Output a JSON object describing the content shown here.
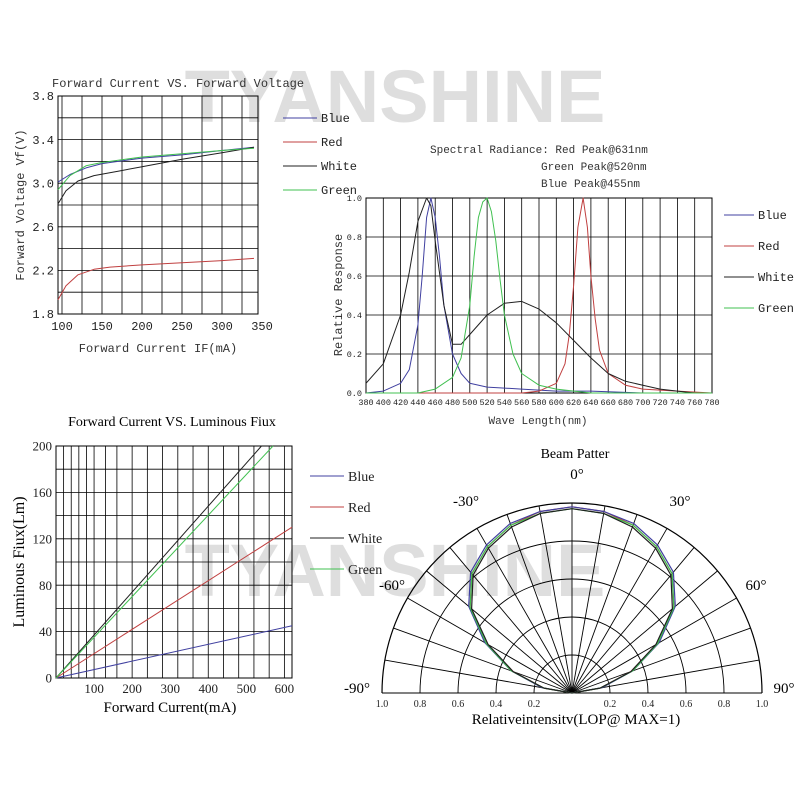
{
  "watermark": {
    "text": "TYANSHINE",
    "color": "#cccccc"
  },
  "colors": {
    "Blue": "#4040a0",
    "Red": "#c04040",
    "White": "#202020",
    "Green": "#40c050"
  },
  "chart_data": [
    {
      "id": "vf",
      "type": "line",
      "title": "Forward Current VS. Forward Voltage",
      "xlabel": "Forward Current IF(mA)",
      "ylabel": "Forward Voltage Vf(V)",
      "xlim": [
        95,
        345
      ],
      "ylim": [
        1.8,
        3.8
      ],
      "xticks": [
        100,
        150,
        200,
        250,
        300,
        350
      ],
      "xtick_labels": [
        "100",
        "150",
        "200",
        "250",
        "300",
        "350"
      ],
      "yticks": [
        1.8,
        2.2,
        2.6,
        3.0,
        3.4,
        3.8
      ],
      "ytick_labels": [
        "1.8",
        "2.2",
        "2.6",
        "3.0",
        "3.4",
        "3.8"
      ],
      "grid": true,
      "legend": "right",
      "series": [
        {
          "name": "Blue",
          "x": [
            95,
            110,
            130,
            150,
            200,
            250,
            300,
            340
          ],
          "y": [
            3.01,
            3.08,
            3.14,
            3.18,
            3.23,
            3.26,
            3.3,
            3.33
          ]
        },
        {
          "name": "Red",
          "x": [
            95,
            105,
            120,
            140,
            160,
            200,
            250,
            300,
            340
          ],
          "y": [
            1.93,
            2.06,
            2.16,
            2.21,
            2.23,
            2.25,
            2.27,
            2.29,
            2.31
          ]
        },
        {
          "name": "White",
          "x": [
            95,
            105,
            120,
            140,
            170,
            200,
            250,
            300,
            340
          ],
          "y": [
            2.81,
            2.93,
            3.02,
            3.07,
            3.11,
            3.15,
            3.22,
            3.28,
            3.33
          ]
        },
        {
          "name": "Green",
          "x": [
            95,
            110,
            130,
            150,
            200,
            250,
            300,
            340
          ],
          "y": [
            2.94,
            3.07,
            3.16,
            3.19,
            3.24,
            3.27,
            3.3,
            3.32
          ]
        }
      ]
    },
    {
      "id": "spectrum",
      "type": "line",
      "title": "",
      "annotations": [
        "Spectral Radiance: Red Peak@631nm",
        "Green Peak@520nm",
        "Blue Peak@455nm"
      ],
      "xlabel": "Wave Length(nm)",
      "ylabel": "Relative Response",
      "xlim": [
        380,
        780
      ],
      "ylim": [
        0,
        1.0
      ],
      "xticks": [
        380,
        400,
        420,
        440,
        460,
        480,
        500,
        520,
        540,
        560,
        580,
        600,
        620,
        640,
        660,
        680,
        700,
        720,
        740,
        760,
        780
      ],
      "xtick_labels": [
        "380",
        "400",
        "420",
        "440",
        "460",
        "480",
        "500",
        "520",
        "540",
        "560",
        "580",
        "600",
        "620",
        "640",
        "660",
        "680",
        "700",
        "720",
        "740",
        "760",
        "780"
      ],
      "yticks": [
        0,
        0.2,
        0.4,
        0.6,
        0.8,
        1.0
      ],
      "ytick_labels": [
        "0.0",
        "0.2",
        "0.4",
        "0.6",
        "0.8",
        "1.0"
      ],
      "grid": true,
      "legend": "right",
      "series": [
        {
          "name": "Blue",
          "x": [
            380,
            400,
            420,
            430,
            440,
            445,
            450,
            455,
            460,
            465,
            470,
            480,
            490,
            500,
            520,
            560,
            600,
            640,
            700,
            760,
            780
          ],
          "y": [
            0.0,
            0.01,
            0.05,
            0.12,
            0.35,
            0.6,
            0.9,
            1.0,
            0.9,
            0.7,
            0.45,
            0.2,
            0.1,
            0.05,
            0.03,
            0.02,
            0.01,
            0.01,
            0.0,
            0.0,
            0.0
          ]
        },
        {
          "name": "Red",
          "x": [
            380,
            560,
            580,
            600,
            610,
            615,
            620,
            625,
            631,
            636,
            640,
            645,
            650,
            660,
            680,
            700,
            740,
            780
          ],
          "y": [
            0.0,
            0.0,
            0.01,
            0.05,
            0.15,
            0.3,
            0.55,
            0.85,
            1.0,
            0.85,
            0.6,
            0.38,
            0.22,
            0.1,
            0.04,
            0.02,
            0.01,
            0.0
          ]
        },
        {
          "name": "White",
          "x": [
            380,
            400,
            420,
            430,
            440,
            450,
            455,
            460,
            470,
            480,
            490,
            500,
            520,
            540,
            560,
            580,
            600,
            620,
            640,
            660,
            680,
            700,
            720,
            740,
            760,
            780
          ],
          "y": [
            0.05,
            0.15,
            0.4,
            0.62,
            0.88,
            1.0,
            0.96,
            0.78,
            0.45,
            0.25,
            0.25,
            0.3,
            0.4,
            0.46,
            0.47,
            0.43,
            0.36,
            0.27,
            0.18,
            0.1,
            0.06,
            0.04,
            0.02,
            0.01,
            0.0,
            0.0
          ]
        },
        {
          "name": "Green",
          "x": [
            380,
            440,
            460,
            480,
            490,
            500,
            505,
            510,
            515,
            520,
            525,
            530,
            535,
            540,
            550,
            560,
            580,
            600,
            640,
            700,
            780
          ],
          "y": [
            0.0,
            0.0,
            0.02,
            0.08,
            0.18,
            0.45,
            0.7,
            0.9,
            0.98,
            1.0,
            0.93,
            0.78,
            0.58,
            0.4,
            0.2,
            0.1,
            0.04,
            0.02,
            0.0,
            0.0,
            0.0
          ]
        }
      ]
    },
    {
      "id": "flux",
      "type": "line",
      "title": "Forward Current VS. Luminous Fiux",
      "xlabel": "Forward Current(mA)",
      "ylabel": "Luminous Fiux(Lm)",
      "xlim": [
        0,
        620
      ],
      "ylim": [
        0,
        200
      ],
      "xticks": [
        100,
        200,
        300,
        400,
        500,
        600
      ],
      "xtick_labels": [
        "100",
        "200",
        "300",
        "400",
        "500",
        "600"
      ],
      "yticks": [
        0,
        40,
        80,
        120,
        160,
        200
      ],
      "ytick_labels": [
        "0",
        "40",
        "80",
        "120",
        "160",
        "200"
      ],
      "grid": true,
      "legend": "right",
      "series": [
        {
          "name": "Blue",
          "x": [
            0,
            620
          ],
          "y": [
            0,
            45
          ]
        },
        {
          "name": "Red",
          "x": [
            0,
            620
          ],
          "y": [
            0,
            130
          ]
        },
        {
          "name": "White",
          "x": [
            0,
            540
          ],
          "y": [
            0,
            200
          ]
        },
        {
          "name": "Green",
          "x": [
            0,
            570
          ],
          "y": [
            0,
            200
          ]
        }
      ]
    },
    {
      "id": "beam",
      "type": "polar",
      "title": "Beam Patter",
      "xlabel": "Relativeintensitv(LOP@ MAX=1)",
      "angle_labels": [
        "0°",
        "30°",
        "-30°",
        "60°",
        "-60°",
        "90°",
        "-90°"
      ],
      "radial_labels_left": [
        "1.0",
        "0.8",
        "0.6",
        "0.4",
        "0.2"
      ],
      "radial_labels_right": [
        "0.2",
        "0.4",
        "0.6",
        "0.8",
        "1.0"
      ],
      "radial_ticks": [
        0.2,
        0.4,
        0.6,
        0.8,
        1.0
      ],
      "grid": true,
      "series": [
        {
          "name": "Red",
          "angle": [
            -90,
            -80,
            -70,
            -60,
            -50,
            -40,
            -30,
            -20,
            -10,
            0,
            10,
            20,
            30,
            40,
            50,
            60,
            70,
            80,
            90
          ],
          "value": [
            0.0,
            0.15,
            0.33,
            0.52,
            0.7,
            0.82,
            0.89,
            0.94,
            0.97,
            0.98,
            0.97,
            0.94,
            0.89,
            0.82,
            0.7,
            0.52,
            0.33,
            0.15,
            0.0
          ]
        },
        {
          "name": "Blue",
          "angle": [
            -90,
            -80,
            -70,
            -60,
            -50,
            -40,
            -30,
            -20,
            -10,
            0,
            10,
            20,
            30,
            40,
            50,
            60,
            70,
            80,
            90
          ],
          "value": [
            0.0,
            0.16,
            0.34,
            0.53,
            0.71,
            0.83,
            0.9,
            0.95,
            0.97,
            0.98,
            0.97,
            0.95,
            0.9,
            0.83,
            0.71,
            0.53,
            0.34,
            0.16,
            0.0
          ]
        },
        {
          "name": "Green",
          "angle": [
            -90,
            -80,
            -70,
            -60,
            -50,
            -40,
            -30,
            -20,
            -10,
            0,
            10,
            20,
            30,
            40,
            50,
            60,
            70,
            80,
            90
          ],
          "value": [
            0.0,
            0.15,
            0.34,
            0.52,
            0.7,
            0.82,
            0.89,
            0.94,
            0.96,
            0.97,
            0.96,
            0.94,
            0.89,
            0.82,
            0.7,
            0.52,
            0.34,
            0.15,
            0.0
          ]
        },
        {
          "name": "White",
          "angle": [
            -90,
            -80,
            -70,
            -60,
            -50,
            -40,
            -30,
            -20,
            -10,
            0,
            10,
            20,
            30,
            40,
            50,
            60,
            70,
            80,
            90
          ],
          "value": [
            0.0,
            0.15,
            0.33,
            0.51,
            0.69,
            0.81,
            0.88,
            0.93,
            0.96,
            0.97,
            0.96,
            0.93,
            0.88,
            0.81,
            0.69,
            0.51,
            0.33,
            0.15,
            0.0
          ]
        }
      ]
    }
  ]
}
